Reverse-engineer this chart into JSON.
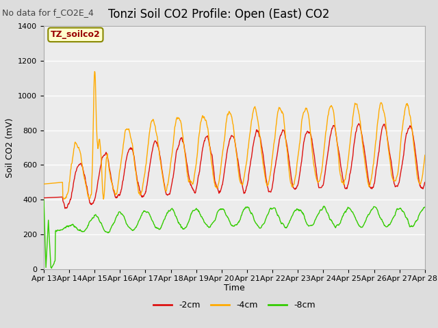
{
  "title": "Tonzi Soil CO2 Profile: Open (East) CO2",
  "subtitle": "No data for f_CO2E_4",
  "ylabel": "Soil CO2 (mV)",
  "xlabel": "Time",
  "box_label": "TZ_soilco2",
  "ylim": [
    0,
    1400
  ],
  "yticks": [
    0,
    200,
    400,
    600,
    800,
    1000,
    1200,
    1400
  ],
  "x_tick_labels": [
    "Apr 13",
    "Apr 14",
    "Apr 15",
    "Apr 16",
    "Apr 17",
    "Apr 18",
    "Apr 19",
    "Apr 20",
    "Apr 21",
    "Apr 22",
    "Apr 23",
    "Apr 24",
    "Apr 25",
    "Apr 26",
    "Apr 27",
    "Apr 28"
  ],
  "legend_labels": [
    "-2cm",
    "-4cm",
    "-8cm"
  ],
  "color_red": "#dd1111",
  "color_orange": "#ffaa00",
  "color_green": "#33cc00",
  "line_width": 1.0,
  "fig_bg": "#dddddd",
  "plot_bg": "#ececec",
  "grid_color": "#ffffff",
  "title_fontsize": 12,
  "subtitle_fontsize": 9,
  "label_fontsize": 9,
  "tick_fontsize": 8,
  "legend_fontsize": 9,
  "n_points": 1080
}
